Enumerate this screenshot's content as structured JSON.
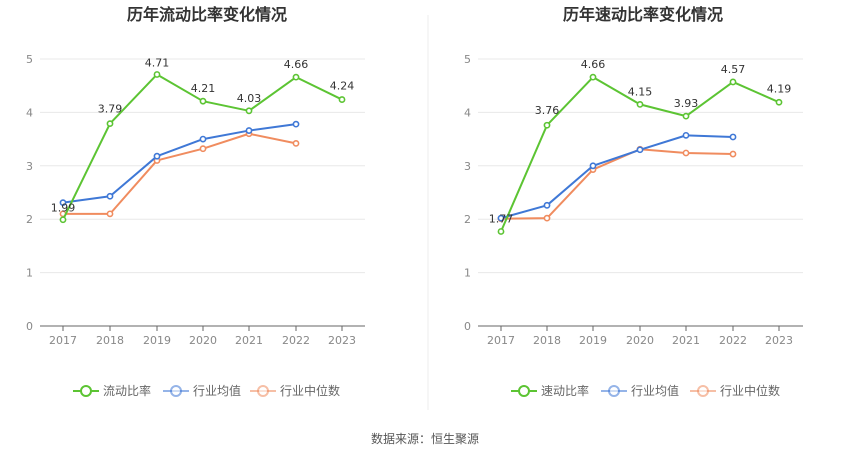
{
  "source": "数据来源：恒生聚源",
  "colors": {
    "main": "#5cc433",
    "avg": "#3f78d6",
    "median": "#f08c5f",
    "grid": "#e8e8e8",
    "axis": "#666666"
  },
  "chart_data": [
    {
      "type": "line",
      "title": "历年流动比率变化情况",
      "x": [
        "2017",
        "2018",
        "2019",
        "2020",
        "2021",
        "2022",
        "2023"
      ],
      "ylim": [
        0,
        5
      ],
      "yticks": [
        "0",
        "1",
        "2",
        "3",
        "4",
        "5"
      ],
      "legend_position": "bottom",
      "grid": true,
      "series": [
        {
          "name": "流动比率",
          "values": [
            1.99,
            3.79,
            4.71,
            4.21,
            4.03,
            4.66,
            4.24
          ],
          "labels": [
            "1.99",
            "3.79",
            "4.71",
            "4.21",
            "4.03",
            "4.66",
            "4.24"
          ]
        },
        {
          "name": "行业均值",
          "values": [
            2.31,
            2.43,
            3.18,
            3.5,
            3.66,
            3.78,
            null
          ]
        },
        {
          "name": "行业中位数",
          "values": [
            2.1,
            2.1,
            3.1,
            3.32,
            3.6,
            3.42,
            null
          ]
        }
      ]
    },
    {
      "type": "line",
      "title": "历年速动比率变化情况",
      "x": [
        "2017",
        "2018",
        "2019",
        "2020",
        "2021",
        "2022",
        "2023"
      ],
      "ylim": [
        0,
        5
      ],
      "yticks": [
        "0",
        "1",
        "2",
        "3",
        "4",
        "5"
      ],
      "legend_position": "bottom",
      "grid": true,
      "series": [
        {
          "name": "速动比率",
          "values": [
            1.77,
            3.76,
            4.66,
            4.15,
            3.93,
            4.57,
            4.19
          ],
          "labels": [
            "1.77",
            "3.76",
            "4.66",
            "4.15",
            "3.93",
            "4.57",
            "4.19"
          ]
        },
        {
          "name": "行业均值",
          "values": [
            2.02,
            2.26,
            3.0,
            3.3,
            3.57,
            3.54,
            null
          ]
        },
        {
          "name": "行业中位数",
          "values": [
            2.01,
            2.02,
            2.93,
            3.31,
            3.24,
            3.22,
            null
          ]
        }
      ]
    }
  ]
}
